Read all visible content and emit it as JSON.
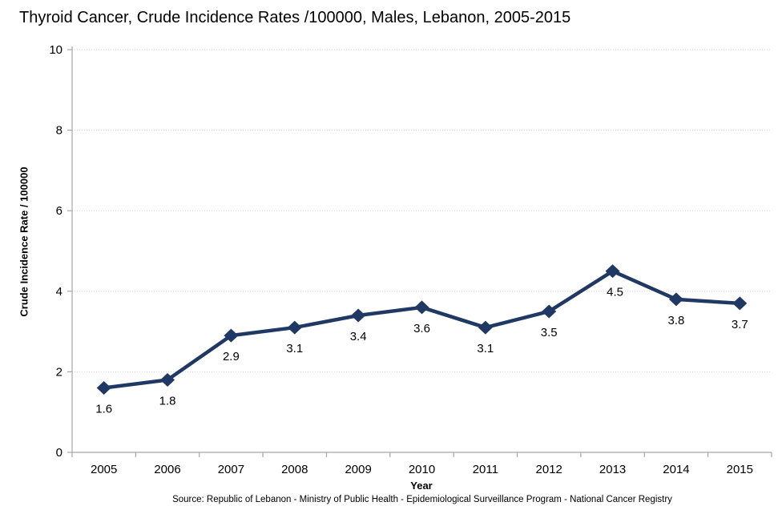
{
  "chart_data": {
    "type": "line",
    "title": "Thyroid Cancer, Crude Incidence Rates /100000,  Males, Lebanon, 2005-2015",
    "categories": [
      "2005",
      "2006",
      "2007",
      "2008",
      "2009",
      "2010",
      "2011",
      "2012",
      "2013",
      "2014",
      "2015"
    ],
    "series": [
      {
        "name": "Crude Incidence Rate",
        "values": [
          1.6,
          1.8,
          2.9,
          3.1,
          3.4,
          3.6,
          3.1,
          3.5,
          4.5,
          3.8,
          3.7
        ]
      }
    ],
    "data_labels": [
      "1.6",
      "1.8",
      "2.9",
      "3.1",
      "3.4",
      "3.6",
      "3.1",
      "3.5",
      "4.5",
      "3.8",
      "3.7"
    ],
    "xlabel": "Year",
    "ylabel": "Crude Incidence Rate / 100000",
    "ylim": [
      0,
      10
    ],
    "y_ticks": [
      0,
      2,
      4,
      6,
      8,
      10
    ],
    "grid": "horizontal-dotted",
    "legend": false,
    "marker": "diamond",
    "colors": {
      "line": "#1f3864",
      "marker": "#1f3864",
      "gridline": "#d2d2d2",
      "axis": "#a6a6a6",
      "text": "#000000"
    }
  },
  "source_note": "Source: Republic of Lebanon  - Ministry of Public Health - Epidemiological Surveillance Program - National Cancer Registry"
}
